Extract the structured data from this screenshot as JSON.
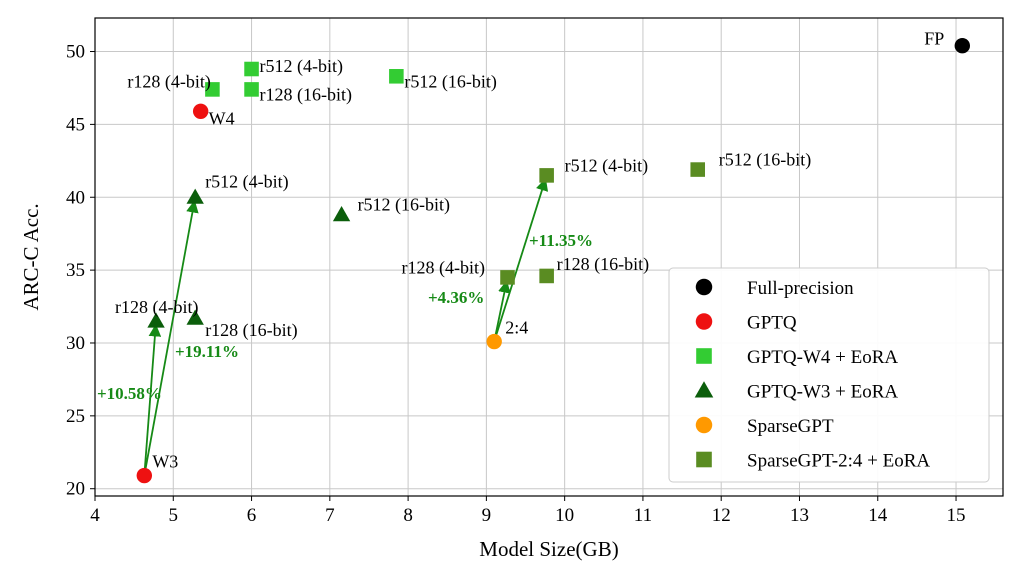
{
  "chart_data": {
    "type": "scatter",
    "xlabel": "Model Size(GB)",
    "ylabel": "ARC-C Acc.",
    "xlim": [
      4,
      15.6
    ],
    "ylim": [
      19.5,
      52.3
    ],
    "xticks": [
      "4",
      "5",
      "6",
      "7",
      "8",
      "9",
      "10",
      "11",
      "12",
      "13",
      "14",
      "15"
    ],
    "yticks": [
      "20",
      "25",
      "30",
      "35",
      "40",
      "45",
      "50"
    ],
    "grid": true,
    "legend_position": "bottom-right",
    "series": [
      {
        "name": "Full-precision",
        "marker": "circle",
        "color": "#000000",
        "points": [
          {
            "x": 15.08,
            "y": 50.4,
            "label": "FP"
          }
        ]
      },
      {
        "name": "GPTQ",
        "marker": "circle",
        "color": "#ee1111",
        "points": [
          {
            "x": 5.35,
            "y": 45.9,
            "label": "W4"
          },
          {
            "x": 4.63,
            "y": 20.9,
            "label": "W3"
          }
        ]
      },
      {
        "name": "GPTQ-W4 + EoRA",
        "marker": "square",
        "color": "#33cc33",
        "points": [
          {
            "x": 5.5,
            "y": 47.4,
            "label": "r128 (4-bit)"
          },
          {
            "x": 6.0,
            "y": 48.8,
            "label": "r512 (4-bit)"
          },
          {
            "x": 6.0,
            "y": 47.4,
            "label": "r128 (16-bit)"
          },
          {
            "x": 7.85,
            "y": 48.3,
            "label": "r512 (16-bit)"
          }
        ]
      },
      {
        "name": "GPTQ-W3 + EoRA",
        "marker": "triangle",
        "color": "#0b5e0b",
        "points": [
          {
            "x": 4.78,
            "y": 31.5,
            "label": "r128 (4-bit)"
          },
          {
            "x": 5.28,
            "y": 40.0,
            "label": "r512 (4-bit)"
          },
          {
            "x": 5.28,
            "y": 31.7,
            "label": "r128 (16-bit)"
          },
          {
            "x": 7.15,
            "y": 38.8,
            "label": "r512 (16-bit)"
          }
        ]
      },
      {
        "name": "SparseGPT",
        "marker": "circle",
        "color": "#ff9900",
        "points": [
          {
            "x": 9.1,
            "y": 30.1,
            "label": "2:4"
          }
        ]
      },
      {
        "name": "SparseGPT-2:4 + EoRA",
        "marker": "square",
        "color": "#5a8c22",
        "points": [
          {
            "x": 9.27,
            "y": 34.5,
            "label": "r128 (4-bit)"
          },
          {
            "x": 9.77,
            "y": 41.5,
            "label": "r512 (4-bit)"
          },
          {
            "x": 9.77,
            "y": 34.6,
            "label": "r128 (16-bit)"
          },
          {
            "x": 11.7,
            "y": 41.9,
            "label": "r512 (16-bit)"
          }
        ]
      }
    ],
    "annotations": [
      {
        "from": [
          4.63,
          20.9
        ],
        "to": [
          4.78,
          31.5
        ],
        "text": "+10.58%"
      },
      {
        "from": [
          4.63,
          20.9
        ],
        "to": [
          5.28,
          40.0
        ],
        "text": "+19.11%"
      },
      {
        "from": [
          9.1,
          30.1
        ],
        "to": [
          9.27,
          34.5
        ],
        "text": "+4.36%"
      },
      {
        "from": [
          9.1,
          30.1
        ],
        "to": [
          9.77,
          41.5
        ],
        "text": "+11.35%"
      }
    ]
  }
}
